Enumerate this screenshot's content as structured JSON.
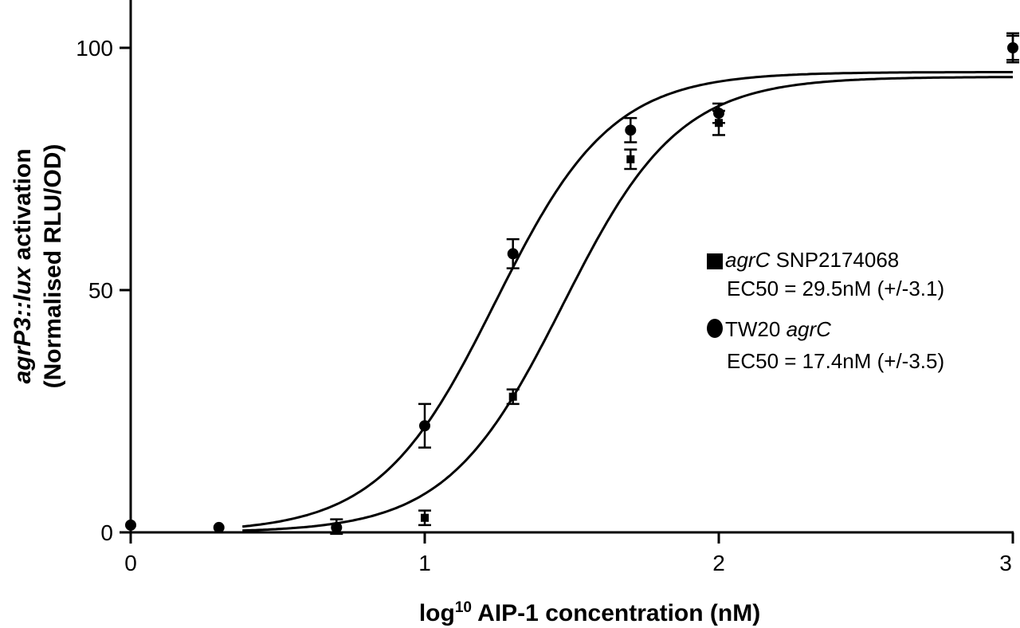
{
  "chart_data": {
    "type": "scatter",
    "xlabel": {
      "prefix": "log",
      "superscript": "10",
      "suffix": " AIP-1 concentration (nM)"
    },
    "ylabel": {
      "line1_italic": "agrP3::lux",
      "line1_rest": " activation",
      "line2": "(Normalised RLU/OD)"
    },
    "xlim": [
      0,
      3
    ],
    "ylim": [
      0,
      100
    ],
    "x_ticks": [
      "0",
      "1",
      "2",
      "3"
    ],
    "y_ticks": [
      "0",
      "50",
      "100"
    ],
    "grid": false,
    "legend_placement": "right",
    "series": [
      {
        "marker": "square",
        "legend_italic": "agrC",
        "legend_rest": " SNP2174068",
        "legend_ec50": "EC50 = 29.5nM (+/-3.1)",
        "ec50_log": 1.47,
        "top": 94,
        "hill": 2.2,
        "points": [
          {
            "x": 0.7,
            "y": 1.2,
            "err": 1.5
          },
          {
            "x": 1.0,
            "y": 3.0,
            "err": 1.5
          },
          {
            "x": 1.3,
            "y": 28.0,
            "err": 1.5
          },
          {
            "x": 1.7,
            "y": 77.0,
            "err": 2.0
          },
          {
            "x": 2.0,
            "y": 84.5,
            "err": 2.5
          },
          {
            "x": 3.0,
            "y": 100.0,
            "err": 2.5
          }
        ]
      },
      {
        "marker": "circle",
        "legend_italic_after": "agrC",
        "legend_rest_before": "TW20 ",
        "legend_ec50": "EC50 = 17.4nM (+/-3.5)",
        "ec50_log": 1.24,
        "top": 95,
        "hill": 2.2,
        "points": [
          {
            "x": 0.0,
            "y": 1.5,
            "err": 0
          },
          {
            "x": 0.3,
            "y": 1.0,
            "err": 0
          },
          {
            "x": 0.7,
            "y": 1.0,
            "err": 0
          },
          {
            "x": 1.0,
            "y": 22.0,
            "err": 4.5
          },
          {
            "x": 1.3,
            "y": 57.5,
            "err": 3.0
          },
          {
            "x": 1.7,
            "y": 83.0,
            "err": 2.5
          },
          {
            "x": 2.0,
            "y": 86.5,
            "err": 2.0
          },
          {
            "x": 3.0,
            "y": 100.0,
            "err": 3.0
          }
        ]
      }
    ]
  }
}
